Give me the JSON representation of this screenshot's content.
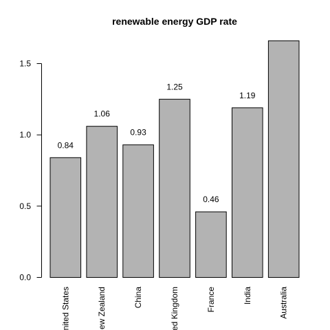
{
  "chart_data": {
    "type": "bar",
    "title": "renewable energy GDP rate",
    "xlabel": "",
    "ylabel": "",
    "categories": [
      "United States",
      "New Zealand",
      "China",
      "United Kingdom",
      "France",
      "India",
      "Australia"
    ],
    "values": [
      0.84,
      1.06,
      0.93,
      1.25,
      0.46,
      1.19,
      1.66
    ],
    "data_labels": [
      "0.84",
      "1.06",
      "0.93",
      "1.25",
      "0.46",
      "1.19",
      ""
    ],
    "ylim": [
      0,
      1.7
    ],
    "yticks": [
      0.0,
      0.5,
      1.0,
      1.5
    ],
    "ytick_labels": [
      "0.0",
      "0.5",
      "1.0",
      "1.5"
    ],
    "grid": false,
    "legend": "none",
    "bar_color": "#b3b3b3"
  }
}
